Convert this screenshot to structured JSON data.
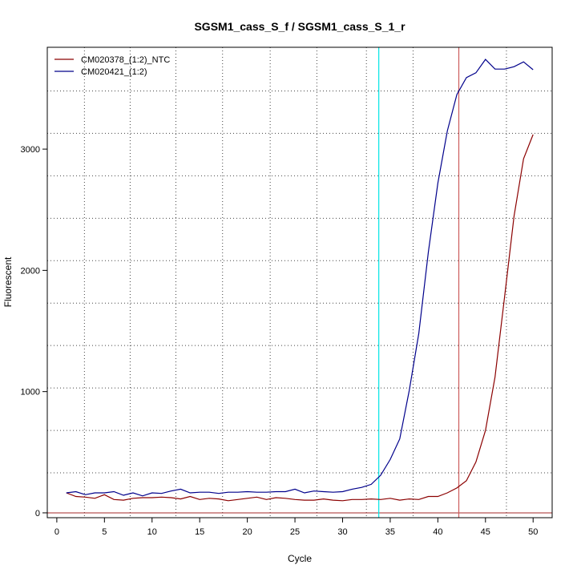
{
  "chart_data": {
    "type": "line",
    "title": "SGSM1_cass_S_f / SGSM1_cass_S_1_r",
    "xlabel": "Cycle",
    "ylabel": "Fluorescent",
    "xlim": [
      -1,
      52
    ],
    "ylim": [
      -40,
      3840
    ],
    "x_ticks": [
      0,
      5,
      10,
      15,
      20,
      25,
      30,
      35,
      40,
      45,
      50
    ],
    "y_ticks": [
      0,
      1000,
      2000,
      3000
    ],
    "grid": true,
    "legend_position": "top-left",
    "x": [
      1,
      2,
      3,
      4,
      5,
      6,
      7,
      8,
      9,
      10,
      11,
      12,
      13,
      14,
      15,
      16,
      17,
      18,
      19,
      20,
      21,
      22,
      23,
      24,
      25,
      26,
      27,
      28,
      29,
      30,
      31,
      32,
      33,
      34,
      35,
      36,
      37,
      38,
      39,
      40,
      41,
      42,
      43,
      44,
      45,
      46,
      47,
      48,
      49,
      50
    ],
    "series": [
      {
        "name": "CM020378_(1:2)_NTC",
        "color": "#8b0000",
        "values": [
          165,
          135,
          130,
          120,
          150,
          110,
          105,
          120,
          125,
          125,
          130,
          125,
          115,
          135,
          110,
          120,
          115,
          100,
          110,
          120,
          130,
          110,
          125,
          120,
          110,
          105,
          105,
          115,
          105,
          100,
          110,
          110,
          115,
          110,
          120,
          105,
          115,
          110,
          135,
          135,
          165,
          205,
          265,
          420,
          680,
          1120,
          1780,
          2450,
          2920,
          3120
        ]
      },
      {
        "name": "CM020421_(1:2)",
        "color": "#00008b",
        "values": [
          165,
          175,
          150,
          165,
          165,
          175,
          145,
          165,
          140,
          165,
          160,
          180,
          195,
          165,
          170,
          170,
          160,
          170,
          170,
          175,
          170,
          170,
          175,
          175,
          195,
          165,
          180,
          175,
          170,
          175,
          195,
          210,
          235,
          310,
          440,
          610,
          1010,
          1480,
          2150,
          2720,
          3150,
          3450,
          3590,
          3630,
          3740,
          3660,
          3660,
          3680,
          3720,
          3655
        ]
      }
    ],
    "vertical_lines": [
      {
        "x": 33.8,
        "color": "#00e5e5"
      },
      {
        "x": 42.2,
        "color": "#cd5c5c"
      }
    ],
    "horizontal_lines": [
      {
        "y": 0,
        "color": "#a52a2a"
      }
    ],
    "v_grid": [
      2.9,
      7.7,
      12.5,
      17.4,
      22.4,
      27.3,
      32.5,
      37.4,
      42.2,
      47.2
    ],
    "h_grid": [
      330,
      680,
      1030,
      1380,
      1730,
      2080,
      2430,
      2780,
      3130,
      3480
    ]
  }
}
